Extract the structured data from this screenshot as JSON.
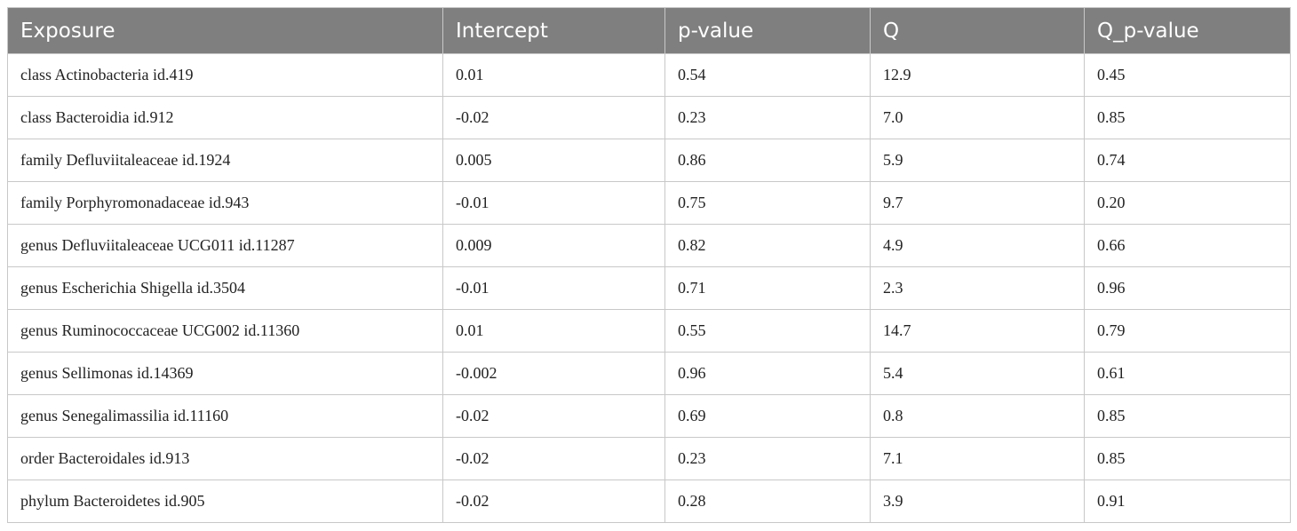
{
  "table": {
    "header": [
      "Exposure",
      "Intercept",
      "p-value",
      "Q",
      "Q_p-value"
    ],
    "rows": [
      [
        "class Actinobacteria id.419",
        "0.01",
        "0.54",
        "12.9",
        "0.45"
      ],
      [
        "class Bacteroidia id.912",
        "-0.02",
        "0.23",
        "7.0",
        "0.85"
      ],
      [
        "family Defluviitaleaceae id.1924",
        "0.005",
        "0.86",
        "5.9",
        "0.74"
      ],
      [
        "family Porphyromonadaceae id.943",
        "-0.01",
        "0.75",
        "9.7",
        "0.20"
      ],
      [
        "genus Defluviitaleaceae UCG011 id.11287",
        "0.009",
        "0.82",
        "4.9",
        "0.66"
      ],
      [
        "genus Escherichia Shigella id.3504",
        "-0.01",
        "0.71",
        "2.3",
        "0.96"
      ],
      [
        "genus Ruminococcaceae UCG002 id.11360",
        "0.01",
        "0.55",
        "14.7",
        "0.79"
      ],
      [
        "genus Sellimonas id.14369",
        "-0.002",
        "0.96",
        "5.4",
        "0.61"
      ],
      [
        "genus Senegalimassilia id.11160",
        "-0.02",
        "0.69",
        "0.8",
        "0.85"
      ],
      [
        "order Bacteroidales id.913",
        "-0.02",
        "0.23",
        "7.1",
        "0.85"
      ],
      [
        "phylum Bacteroidetes id.905",
        "-0.02",
        "0.28",
        "3.9",
        "0.91"
      ]
    ]
  }
}
